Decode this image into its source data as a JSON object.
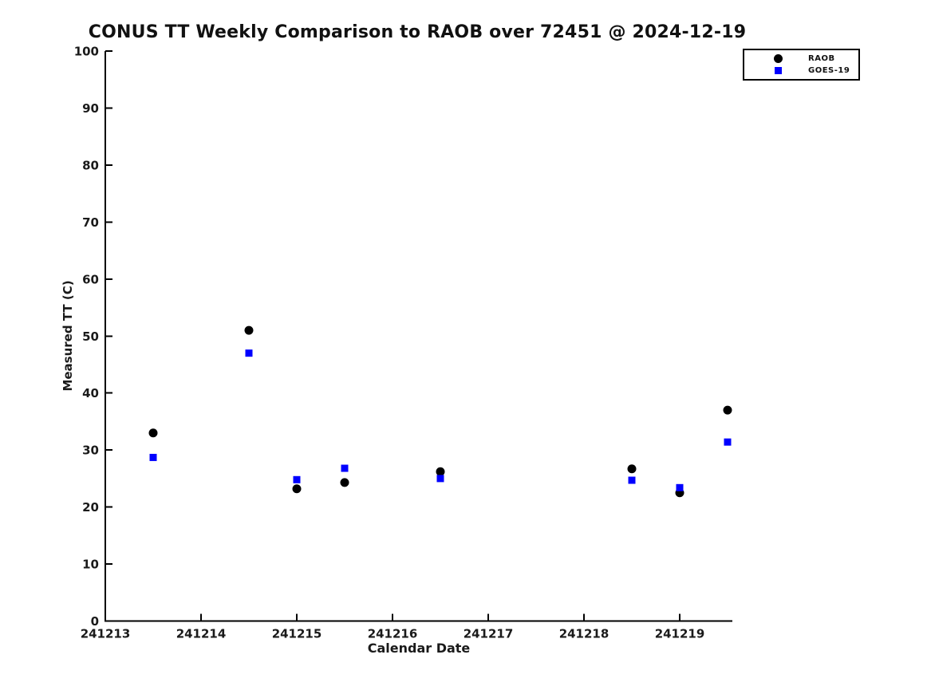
{
  "chart": {
    "title": "CONUS TT Weekly Comparison to RAOB over 72451 @ 2024-12-19",
    "xlabel": "Calendar Date",
    "ylabel": "Measured TT (C)"
  },
  "legend": {
    "items": [
      {
        "label": "RAOB",
        "marker": "circle",
        "color": "#000000"
      },
      {
        "label": "GOES-19",
        "marker": "square",
        "color": "#0000ff"
      }
    ]
  },
  "chart_data": {
    "type": "scatter",
    "title": "CONUS TT Weekly Comparison to RAOB over 72451 @ 2024-12-19",
    "xlabel": "Calendar Date",
    "ylabel": "Measured TT (C)",
    "x": [
      241213.5,
      241214.5,
      241215.0,
      241215.5,
      241216.5,
      241218.5,
      241219.0,
      241219.5
    ],
    "series": [
      {
        "name": "RAOB",
        "marker": "circle",
        "color": "#000000",
        "values": [
          33.0,
          51.0,
          23.2,
          24.3,
          26.2,
          26.7,
          22.5,
          37.0
        ]
      },
      {
        "name": "GOES-19",
        "marker": "square",
        "color": "#0000ff",
        "values": [
          28.7,
          47.0,
          24.8,
          26.8,
          25.0,
          24.7,
          23.4,
          31.4
        ]
      }
    ],
    "xlim": [
      241213,
      241219.55
    ],
    "ylim": [
      0,
      100
    ],
    "xticks": [
      241213,
      241214,
      241215,
      241216,
      241217,
      241218,
      241219
    ],
    "yticks": [
      0,
      10,
      20,
      30,
      40,
      50,
      60,
      70,
      80,
      90,
      100
    ],
    "grid": false,
    "legend_position": "top-right"
  }
}
